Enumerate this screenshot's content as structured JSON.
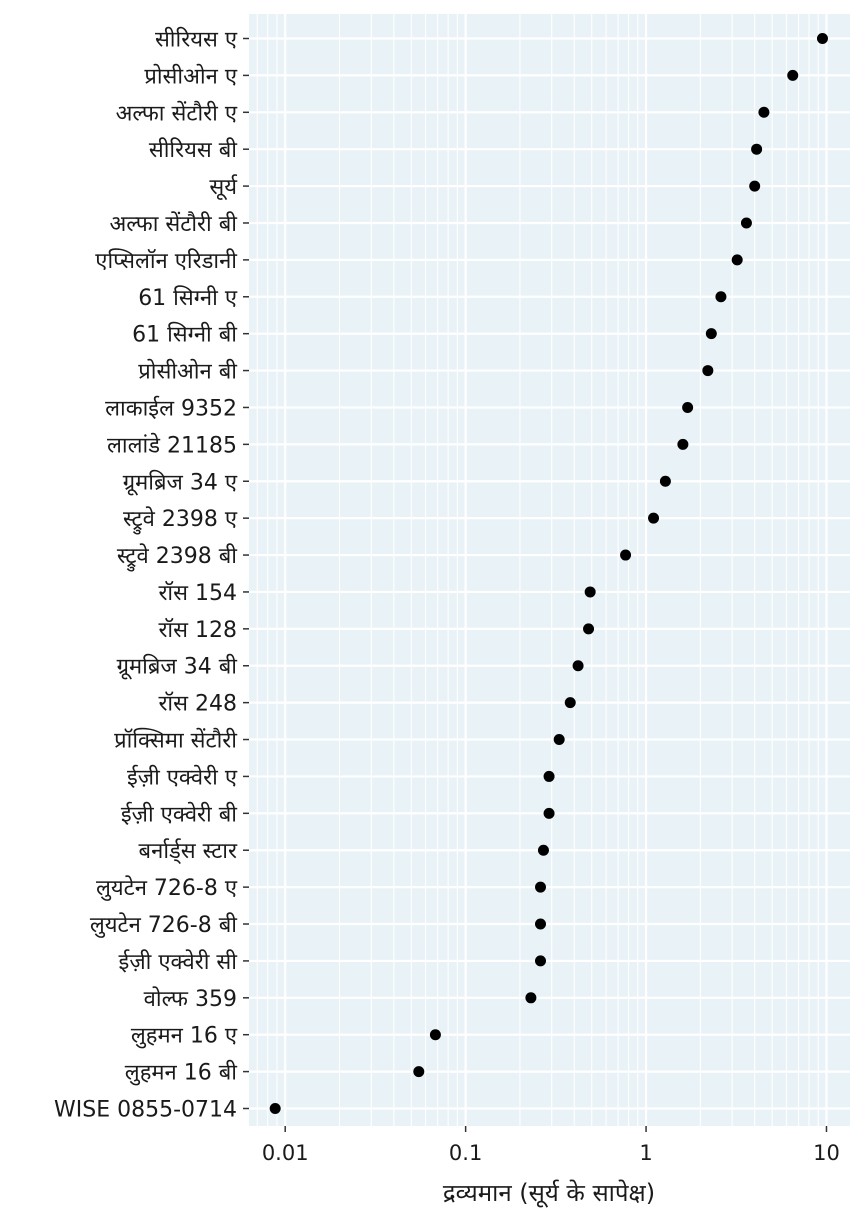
{
  "chart_data": {
    "type": "scatter",
    "title": "",
    "xlabel": "द्रव्यमान (सूर्य के सापेक्ष)",
    "ylabel": "",
    "x_scale": "log",
    "xlim": [
      0.0063,
      13.5
    ],
    "x_ticks": [
      {
        "value": 0.01,
        "label": "0.01"
      },
      {
        "value": 0.1,
        "label": "0.1"
      },
      {
        "value": 1,
        "label": "1"
      },
      {
        "value": 10,
        "label": "10"
      }
    ],
    "grid": true,
    "legend": "none",
    "colors": {
      "panel": "#e9f2f6",
      "grid": "#ffffff",
      "point": "#000000",
      "text": "#1a1a1a",
      "tick": "#333333"
    },
    "points": [
      {
        "name": "सीरियस ए",
        "value": 9.5
      },
      {
        "name": "प्रोसीओन ए",
        "value": 6.5
      },
      {
        "name": "अल्फा सेंटौरी ए",
        "value": 4.5
      },
      {
        "name": "सीरियस बी",
        "value": 4.1
      },
      {
        "name": "सूर्य",
        "value": 4.0
      },
      {
        "name": "अल्फा सेंटौरी बी",
        "value": 3.6
      },
      {
        "name": "एप्सिलॉन एरिडानी",
        "value": 3.2
      },
      {
        "name": "61 सिग्नी ए",
        "value": 2.6
      },
      {
        "name": "61 सिग्नी बी",
        "value": 2.3
      },
      {
        "name": "प्रोसीओन बी",
        "value": 2.2
      },
      {
        "name": "लाकाईल 9352",
        "value": 1.7
      },
      {
        "name": "लालांडे 21185",
        "value": 1.6
      },
      {
        "name": "ग्रूमब्रिज 34 ए",
        "value": 1.28
      },
      {
        "name": "स्ट्रुवे 2398 ए",
        "value": 1.1
      },
      {
        "name": "स्ट्रुवे 2398 बी",
        "value": 0.77
      },
      {
        "name": "रॉस 154",
        "value": 0.49
      },
      {
        "name": "रॉस 128",
        "value": 0.48
      },
      {
        "name": "ग्रूमब्रिज 34 बी",
        "value": 0.42
      },
      {
        "name": "रॉस 248",
        "value": 0.38
      },
      {
        "name": "प्रॉक्सिमा सेंटौरी",
        "value": 0.33
      },
      {
        "name": "ईज़ी एक्वेरी ए",
        "value": 0.29
      },
      {
        "name": "ईज़ी एक्वेरी बी",
        "value": 0.29
      },
      {
        "name": "बर्नार्ड्स स्टार",
        "value": 0.27
      },
      {
        "name": "लुयटेन 726-8 ए",
        "value": 0.26
      },
      {
        "name": "लुयटेन 726-8 बी",
        "value": 0.26
      },
      {
        "name": "ईज़ी एक्वेरी सी",
        "value": 0.26
      },
      {
        "name": "वोल्फ 359",
        "value": 0.23
      },
      {
        "name": "लुहमन 16 ए",
        "value": 0.068
      },
      {
        "name": "लुहमन 16 बी",
        "value": 0.055
      },
      {
        "name": "WISE 0855-0714",
        "value": 0.0088
      }
    ]
  }
}
